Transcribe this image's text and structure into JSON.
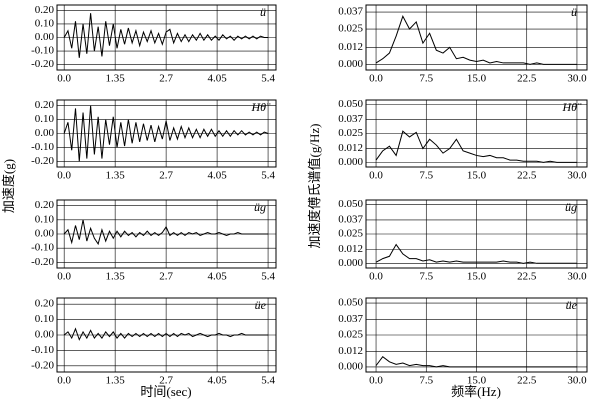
{
  "axis_labels": {
    "left_y": "加速度(g)",
    "left_x": "时间(sec)",
    "right_y": "加速度傅氏谱值(g/Hz)",
    "right_x": "频率(Hz)"
  },
  "chart_data": [
    {
      "type": "line",
      "annotation": "ü",
      "color": "#000000",
      "grid": true,
      "x": [
        0,
        0.1,
        0.2,
        0.3,
        0.4,
        0.5,
        0.6,
        0.7,
        0.8,
        0.9,
        1.0,
        1.1,
        1.2,
        1.3,
        1.4,
        1.5,
        1.6,
        1.7,
        1.8,
        1.9,
        2.0,
        2.1,
        2.2,
        2.3,
        2.4,
        2.5,
        2.6,
        2.7,
        2.8,
        2.9,
        3.0,
        3.1,
        3.2,
        3.3,
        3.4,
        3.5,
        3.6,
        3.7,
        3.8,
        3.9,
        4.0,
        4.1,
        4.2,
        4.3,
        4.4,
        4.5,
        4.6,
        4.7,
        4.8,
        4.9,
        5.0,
        5.1,
        5.2,
        5.3,
        5.4
      ],
      "values": [
        0,
        0.05,
        -0.08,
        0.12,
        -0.15,
        0.1,
        -0.12,
        0.18,
        -0.1,
        0.08,
        -0.14,
        0.12,
        -0.06,
        0.1,
        -0.08,
        0.06,
        -0.05,
        0.07,
        -0.04,
        0.05,
        -0.06,
        0.04,
        -0.03,
        0.05,
        -0.04,
        0.03,
        -0.05,
        0.04,
        0.06,
        -0.04,
        0.03,
        -0.03,
        0.02,
        -0.03,
        0.02,
        -0.02,
        0.03,
        -0.02,
        0.02,
        -0.02,
        0.01,
        -0.02,
        0.02,
        -0.01,
        0.01,
        -0.02,
        0.01,
        -0.01,
        0.01,
        -0.01,
        0.01,
        -0.01,
        0.01,
        0,
        0
      ],
      "xlim": [
        -0.19,
        5.61
      ],
      "ylim": [
        -0.24,
        0.24
      ],
      "xticks": [
        {
          "value": 0,
          "label": "0.0"
        },
        1.35,
        2.7,
        4.05,
        5.4
      ],
      "yticks": [
        {
          "value": 0.2,
          "label": "0.20"
        },
        {
          "value": 0.1,
          "label": "0.10"
        },
        {
          "value": 0,
          "label": "0.00"
        },
        {
          "value": -0.1,
          "label": "-0.10"
        },
        {
          "value": -0.2,
          "label": "-0.20"
        }
      ]
    },
    {
      "type": "line",
      "annotation": "Hθ̈",
      "color": "#000000",
      "grid": true,
      "x": [
        0,
        0.1,
        0.2,
        0.3,
        0.4,
        0.5,
        0.6,
        0.7,
        0.8,
        0.9,
        1.0,
        1.1,
        1.2,
        1.3,
        1.4,
        1.5,
        1.6,
        1.7,
        1.8,
        1.9,
        2.0,
        2.1,
        2.2,
        2.3,
        2.4,
        2.5,
        2.6,
        2.7,
        2.8,
        2.9,
        3.0,
        3.1,
        3.2,
        3.3,
        3.4,
        3.5,
        3.6,
        3.7,
        3.8,
        3.9,
        4.0,
        4.1,
        4.2,
        4.3,
        4.4,
        4.5,
        4.6,
        4.7,
        4.8,
        4.9,
        5.0,
        5.1,
        5.2,
        5.3,
        5.4
      ],
      "values": [
        0,
        0.08,
        -0.12,
        0.18,
        -0.2,
        0.15,
        -0.18,
        0.2,
        -0.15,
        0.12,
        -0.18,
        0.1,
        -0.08,
        0.12,
        -0.1,
        0.08,
        -0.09,
        0.1,
        -0.07,
        0.08,
        -0.06,
        0.07,
        -0.05,
        0.06,
        -0.06,
        0.05,
        -0.04,
        0.09,
        -0.05,
        0.04,
        -0.04,
        0.05,
        -0.03,
        0.04,
        -0.03,
        0.03,
        -0.03,
        0.03,
        -0.02,
        0.03,
        -0.02,
        0.02,
        -0.02,
        0.02,
        -0.02,
        0.02,
        -0.01,
        0.02,
        -0.01,
        0.01,
        -0.01,
        0.01,
        -0.01,
        0.01,
        0
      ],
      "xlim": [
        -0.19,
        5.61
      ],
      "ylim": [
        -0.24,
        0.24
      ],
      "xticks": [
        {
          "value": 0,
          "label": "0.0"
        },
        1.35,
        2.7,
        4.05,
        5.4
      ],
      "yticks": [
        {
          "value": 0.2,
          "label": "0.20"
        },
        {
          "value": 0.1,
          "label": "0.10"
        },
        {
          "value": 0,
          "label": "0.00"
        },
        {
          "value": -0.1,
          "label": "-0.10"
        },
        {
          "value": -0.2,
          "label": "-0.20"
        }
      ]
    },
    {
      "type": "line",
      "annotation": "üg",
      "color": "#000000",
      "grid": true,
      "x": [
        0,
        0.1,
        0.2,
        0.3,
        0.4,
        0.5,
        0.6,
        0.7,
        0.8,
        0.9,
        1.0,
        1.1,
        1.2,
        1.3,
        1.4,
        1.5,
        1.6,
        1.7,
        1.8,
        1.9,
        2.0,
        2.1,
        2.2,
        2.3,
        2.4,
        2.5,
        2.6,
        2.7,
        2.8,
        2.9,
        3.0,
        3.1,
        3.2,
        3.3,
        3.4,
        3.5,
        3.6,
        3.7,
        3.8,
        3.9,
        4.0,
        4.1,
        4.2,
        4.3,
        4.4,
        4.5,
        4.6,
        4.7,
        4.8,
        4.9,
        5.0,
        5.1,
        5.2,
        5.3,
        5.4
      ],
      "values": [
        0,
        0.03,
        -0.06,
        0.06,
        -0.04,
        0.1,
        -0.05,
        0.04,
        -0.03,
        -0.07,
        0.03,
        -0.05,
        0.02,
        -0.03,
        0.02,
        -0.02,
        0.02,
        -0.01,
        0.01,
        -0.02,
        0.01,
        -0.01,
        0.02,
        -0.01,
        0.01,
        -0.01,
        0.01,
        0.05,
        -0.01,
        0.01,
        -0.01,
        0.01,
        -0.01,
        0.01,
        0,
        0.01,
        -0.01,
        0,
        0.01,
        0,
        0,
        0.01,
        0,
        -0.01,
        0,
        0,
        0.01,
        0,
        0,
        0,
        0,
        0,
        0,
        0,
        0
      ],
      "xlim": [
        -0.19,
        5.61
      ],
      "ylim": [
        -0.24,
        0.24
      ],
      "xticks": [
        {
          "value": 0,
          "label": "0.0"
        },
        1.35,
        2.7,
        4.05,
        5.4
      ],
      "yticks": [
        {
          "value": 0.2,
          "label": "0.20"
        },
        {
          "value": 0.1,
          "label": "0.10"
        },
        {
          "value": 0,
          "label": "0.00"
        },
        {
          "value": -0.1,
          "label": "-0.10"
        },
        {
          "value": -0.2,
          "label": "-0.20"
        }
      ]
    },
    {
      "type": "line",
      "annotation": "üe",
      "color": "#000000",
      "grid": true,
      "x": [
        0,
        0.1,
        0.2,
        0.3,
        0.4,
        0.5,
        0.6,
        0.7,
        0.8,
        0.9,
        1.0,
        1.1,
        1.2,
        1.3,
        1.4,
        1.5,
        1.6,
        1.7,
        1.8,
        1.9,
        2.0,
        2.1,
        2.2,
        2.3,
        2.4,
        2.5,
        2.6,
        2.7,
        2.8,
        2.9,
        3.0,
        3.1,
        3.2,
        3.3,
        3.4,
        3.5,
        3.6,
        3.7,
        3.8,
        3.9,
        4.0,
        4.1,
        4.2,
        4.3,
        4.4,
        4.5,
        4.6,
        4.7,
        4.8,
        4.9,
        5.0,
        5.1,
        5.2,
        5.3,
        5.4
      ],
      "values": [
        0,
        0.02,
        -0.02,
        0.04,
        -0.03,
        0.02,
        -0.02,
        0.03,
        -0.02,
        0.01,
        -0.02,
        0.02,
        -0.01,
        0.02,
        -0.02,
        0.01,
        -0.02,
        0.01,
        -0.01,
        0.01,
        -0.01,
        0.01,
        -0.01,
        0.01,
        -0.01,
        0.01,
        -0.01,
        0.01,
        -0.01,
        0.01,
        -0.01,
        0.01,
        0,
        0.01,
        -0.01,
        0,
        0.01,
        0,
        -0.01,
        0,
        0,
        0.01,
        0,
        0,
        -0.01,
        0,
        0,
        0.01,
        0,
        0,
        0,
        0,
        0,
        0,
        0
      ],
      "xlim": [
        -0.19,
        5.61
      ],
      "ylim": [
        -0.24,
        0.24
      ],
      "xticks": [
        {
          "value": 0,
          "label": "0.0"
        },
        1.35,
        2.7,
        4.05,
        5.4
      ],
      "yticks": [
        {
          "value": 0.2,
          "label": "0.20"
        },
        {
          "value": 0.1,
          "label": "0.10"
        },
        {
          "value": 0,
          "label": "0.00"
        },
        {
          "value": -0.1,
          "label": "-0.10"
        },
        {
          "value": -0.2,
          "label": "-0.20"
        }
      ]
    },
    {
      "type": "line",
      "annotation": "ü",
      "color": "#000000",
      "grid": true,
      "x": [
        0,
        1,
        2,
        3,
        4,
        5,
        6,
        7,
        8,
        9,
        10,
        11,
        12,
        13,
        14,
        15,
        16,
        17,
        18,
        19,
        20,
        21,
        22,
        23,
        24,
        25,
        26,
        27,
        28,
        29,
        30
      ],
      "values": [
        0.001,
        0.004,
        0.008,
        0.02,
        0.034,
        0.025,
        0.03,
        0.015,
        0.022,
        0.01,
        0.008,
        0.012,
        0.004,
        0.005,
        0.003,
        0.002,
        0.003,
        0.001,
        0.002,
        0.001,
        0.001,
        0.001,
        0.001,
        0,
        0.001,
        0,
        0,
        0,
        0,
        0,
        0
      ],
      "xlim": [
        -1.5,
        31.5
      ],
      "ylim": [
        -0.004,
        0.042
      ],
      "xticks": [
        {
          "value": 0,
          "label": "0.0"
        },
        {
          "value": 7.5,
          "label": "7.5"
        },
        {
          "value": 15,
          "label": "15.0"
        },
        {
          "value": 22.5,
          "label": "22.5"
        },
        {
          "value": 30,
          "label": "30.0"
        }
      ],
      "yticks": [
        {
          "value": 0,
          "label": "0.000"
        },
        0.012,
        0.025,
        0.037
      ]
    },
    {
      "type": "line",
      "annotation": "Hθ̈",
      "color": "#000000",
      "grid": true,
      "x": [
        0,
        1,
        2,
        3,
        4,
        5,
        6,
        7,
        8,
        9,
        10,
        11,
        12,
        13,
        14,
        15,
        16,
        17,
        18,
        19,
        20,
        21,
        22,
        23,
        24,
        25,
        26,
        27,
        28,
        29,
        30
      ],
      "values": [
        0.002,
        0.01,
        0.014,
        0.006,
        0.027,
        0.022,
        0.026,
        0.012,
        0.02,
        0.015,
        0.008,
        0.012,
        0.02,
        0.01,
        0.008,
        0.006,
        0.005,
        0.006,
        0.004,
        0.004,
        0.002,
        0.002,
        0.001,
        0.001,
        0.001,
        0,
        0.001,
        0,
        0,
        0,
        0
      ],
      "xlim": [
        -1.5,
        31.5
      ],
      "ylim": [
        -0.004,
        0.054
      ],
      "xticks": [
        {
          "value": 0,
          "label": "0.0"
        },
        {
          "value": 7.5,
          "label": "7.5"
        },
        {
          "value": 15,
          "label": "15.0"
        },
        {
          "value": 22.5,
          "label": "22.5"
        },
        {
          "value": 30,
          "label": "30.0"
        }
      ],
      "yticks": [
        {
          "value": 0,
          "label": "0.000"
        },
        0.012,
        0.025,
        0.037,
        {
          "value": 0.05,
          "label": "0.050"
        }
      ]
    },
    {
      "type": "line",
      "annotation": "üg",
      "color": "#000000",
      "grid": true,
      "x": [
        0,
        1,
        2,
        3,
        4,
        5,
        6,
        7,
        8,
        9,
        10,
        11,
        12,
        13,
        14,
        15,
        16,
        17,
        18,
        19,
        20,
        21,
        22,
        23,
        24,
        25,
        26,
        27,
        28,
        29,
        30
      ],
      "values": [
        0.001,
        0.004,
        0.006,
        0.016,
        0.008,
        0.004,
        0.004,
        0.002,
        0.003,
        0.001,
        0.002,
        0.001,
        0.002,
        0.001,
        0.001,
        0.001,
        0.001,
        0.001,
        0.001,
        0.002,
        0.001,
        0.001,
        0,
        0.001,
        0,
        0,
        0,
        0,
        0,
        0,
        0
      ],
      "xlim": [
        -1.5,
        31.5
      ],
      "ylim": [
        -0.004,
        0.054
      ],
      "xticks": [
        {
          "value": 0,
          "label": "0.0"
        },
        {
          "value": 7.5,
          "label": "7.5"
        },
        {
          "value": 15,
          "label": "15.0"
        },
        {
          "value": 22.5,
          "label": "22.5"
        },
        {
          "value": 30,
          "label": "30.0"
        }
      ],
      "yticks": [
        {
          "value": 0,
          "label": "0.000"
        },
        0.012,
        0.025,
        0.037,
        {
          "value": 0.05,
          "label": "0.050"
        }
      ]
    },
    {
      "type": "line",
      "annotation": "üe",
      "color": "#000000",
      "grid": true,
      "x": [
        0,
        1,
        2,
        3,
        4,
        5,
        6,
        7,
        8,
        9,
        10,
        11,
        12,
        13,
        14,
        15,
        16,
        17,
        18,
        19,
        20,
        21,
        22,
        23,
        24,
        25,
        26,
        27,
        28,
        29,
        30
      ],
      "values": [
        0.001,
        0.008,
        0.004,
        0.002,
        0.003,
        0.001,
        0.002,
        0.001,
        0.001,
        0,
        0.001,
        0,
        0,
        0,
        0,
        0,
        0,
        0,
        0,
        0,
        0,
        0,
        0,
        0,
        0,
        0,
        0,
        0,
        0,
        0,
        0
      ],
      "xlim": [
        -1.5,
        31.5
      ],
      "ylim": [
        -0.004,
        0.054
      ],
      "xticks": [
        {
          "value": 0,
          "label": "0.0"
        },
        {
          "value": 7.5,
          "label": "7.5"
        },
        {
          "value": 15,
          "label": "15.0"
        },
        {
          "value": 22.5,
          "label": "22.5"
        },
        {
          "value": 30,
          "label": "30.0"
        }
      ],
      "yticks": [
        {
          "value": 0,
          "label": "0.000"
        },
        0.012,
        0.025,
        0.037,
        {
          "value": 0.05,
          "label": "0.050"
        }
      ]
    }
  ]
}
